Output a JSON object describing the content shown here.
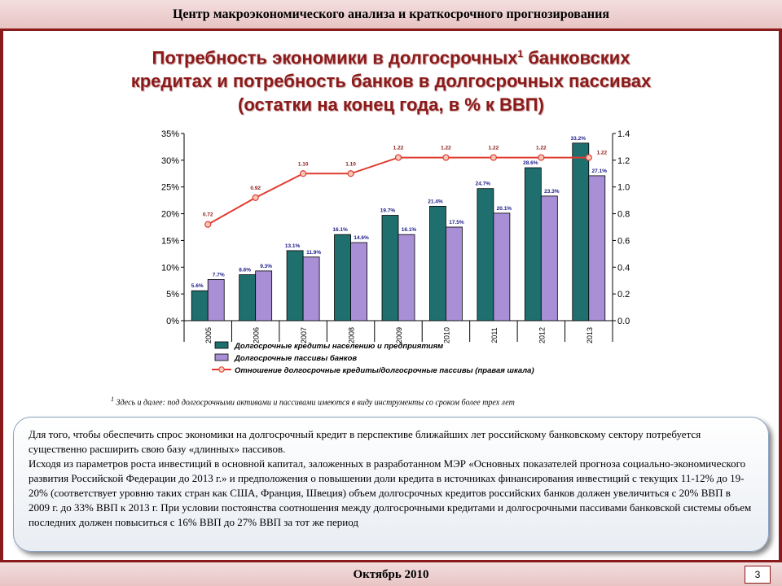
{
  "header": {
    "text": "Центр макроэкономического анализа и краткосрочного прогнозирования"
  },
  "title": {
    "line1_a": "Потребность экономики в долгосрочных",
    "sup": "1",
    "line1_b": " банковских",
    "line2": "кредитах и потребность банков в долгосрочных пассивах",
    "line3": "(остатки на конец года, в % к ВВП)"
  },
  "chart_data": {
    "type": "bar",
    "categories": [
      "2005",
      "2006",
      "2007",
      "2008",
      "2009",
      "2010",
      "2011",
      "2012",
      "2013"
    ],
    "series": [
      {
        "name": "Долгосрочные кредиты населению и предприятиям",
        "kind": "bar",
        "color": "#1f6f6f",
        "values": [
          5.6,
          8.6,
          13.1,
          16.1,
          19.7,
          21.4,
          24.7,
          28.6,
          33.2
        ],
        "labels": [
          "5.6%",
          "8.6%",
          "13.1%",
          "16.1%",
          "19.7%",
          "21.4%",
          "24.7%",
          "28.6%",
          "33.2%"
        ]
      },
      {
        "name": "Долгосрочные пассивы банков",
        "kind": "bar",
        "color": "#a98fd6",
        "values": [
          7.7,
          9.3,
          11.9,
          14.6,
          16.1,
          17.5,
          20.1,
          23.3,
          27.1
        ],
        "labels": [
          "7.7%",
          "9.3%",
          "11.9%",
          "14.6%",
          "16.1%",
          "17.5%",
          "20.1%",
          "23.3%",
          "27.1%"
        ]
      },
      {
        "name": "Отношение долгосрочные кредиты/долгосрочные пассивы (правая шкала)",
        "kind": "line",
        "axis": "right",
        "color": "#e03c31",
        "values": [
          0.72,
          0.92,
          1.1,
          1.1,
          1.22,
          1.22,
          1.22,
          1.22,
          1.22
        ],
        "labels": [
          "0.72",
          "0.92",
          "1.10",
          "1.10",
          "1.22",
          "1.22",
          "1.22",
          "1.22",
          "1.22"
        ]
      }
    ],
    "ylim": [
      0,
      35
    ],
    "y_ticks": [
      "0%",
      "5%",
      "10%",
      "15%",
      "20%",
      "25%",
      "30%",
      "35%"
    ],
    "y2lim": [
      0,
      1.4
    ],
    "y2_ticks": [
      "0.0",
      "0.2",
      "0.4",
      "0.6",
      "0.8",
      "1.0",
      "1.2",
      "1.4"
    ],
    "legend_position": "bottom"
  },
  "footnote": {
    "sup": "1",
    "text": " Здесь и далее: под долгосрочными активами и пассивами имеются в виду инструменты со сроком более трех лет"
  },
  "body": {
    "paragraphs": [
      "Для того, чтобы обеспечить спрос экономики на долгосрочный кредит в перспективе ближайших лет российскому банковскому сектору потребуется существенно расширить свою базу «длинных» пассивов.",
      "Исходя из параметров роста инвестиций в основной капитал, заложенных в разработанном МЭР «Основных показателей прогноза социально-экономического развития Российской Федерации до 2013 г.» и предположения о повышении доли кредита в источниках финансирования инвестиций с текущих 11-12% до 19-20% (соответствует уровню таких стран как США, Франция, Швеция) объем долгосрочных кредитов российских банков должен увеличиться с 20% ВВП в 2009 г. до 33% ВВП к 2013 г. При условии постоянства соотношения между долгосрочными кредитами и долгосрочными пассивами банковской системы объем последних должен повыситься с 16% ВВП до 27% ВВП за тот же период"
    ]
  },
  "footer": {
    "text": "Октябрь 2010",
    "page": "3"
  }
}
